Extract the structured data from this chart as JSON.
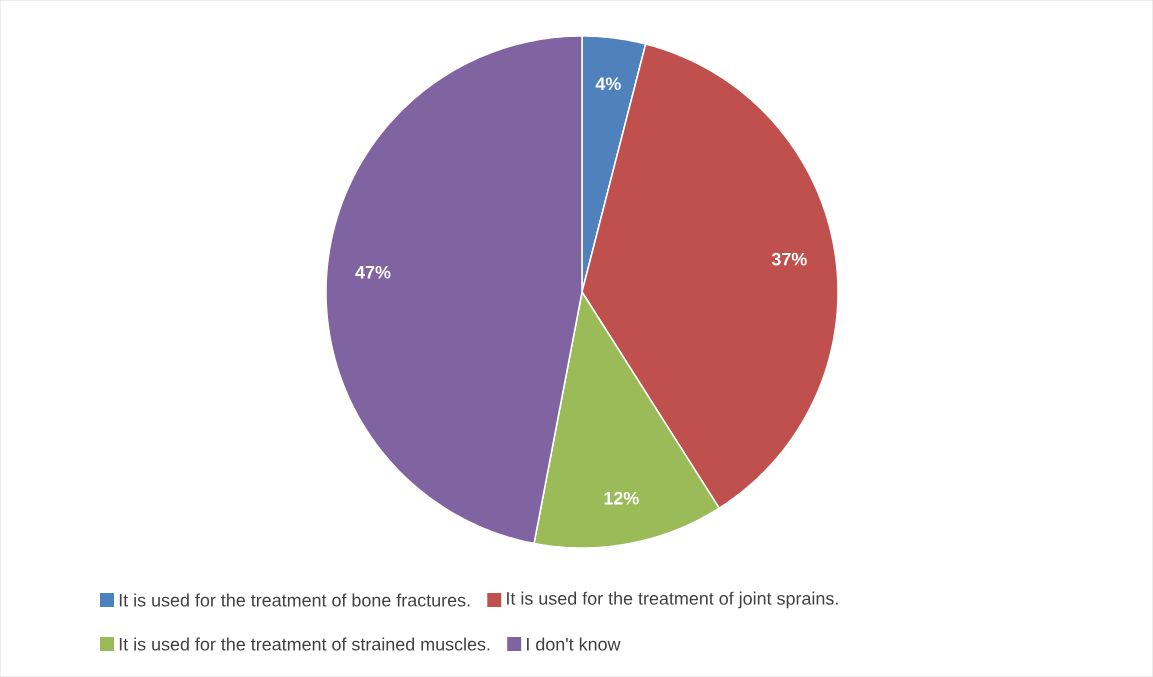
{
  "chart_data": {
    "type": "pie",
    "categories": [
      "It is used for the treatment of bone fractures.",
      "It is used for the treatment of joint sprains.",
      "It is used for the treatment of strained muscles.",
      "I don't know"
    ],
    "values": [
      4,
      37,
      12,
      47
    ],
    "colors": [
      "#4f81bd",
      "#c0504d",
      "#9bbb59",
      "#8064a2"
    ],
    "value_labels": [
      "4%",
      "37%",
      "12%",
      "47%"
    ],
    "legend": "bottom"
  }
}
